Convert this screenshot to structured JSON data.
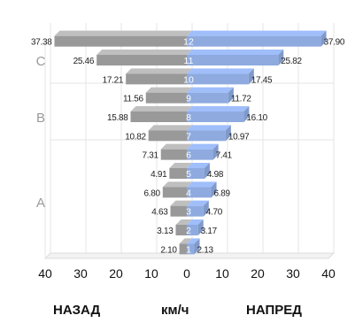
{
  "chart_data": {
    "type": "bar",
    "orientation": "horizontal-butterfly",
    "categories": [
      "12",
      "11",
      "10",
      "9",
      "8",
      "7",
      "6",
      "5",
      "4",
      "3",
      "2",
      "1"
    ],
    "series": [
      {
        "name": "НАЗАД",
        "color": "#999999",
        "values": [
          37.38,
          25.46,
          17.21,
          11.56,
          15.88,
          10.82,
          7.31,
          4.91,
          6.8,
          4.63,
          3.13,
          2.1
        ],
        "labels": [
          "37.38",
          "25.46",
          "17.21",
          "11.56",
          "15.88",
          "10.82",
          "7.31",
          "4.91",
          "6.80",
          "4.63",
          "3.13",
          "2.10"
        ]
      },
      {
        "name": "НАПРЕД",
        "color": "#8eaadf",
        "values": [
          37.9,
          25.82,
          17.45,
          11.72,
          16.1,
          10.97,
          7.41,
          4.98,
          6.89,
          4.7,
          3.17,
          2.13
        ],
        "labels": [
          "37.90",
          "25.82",
          "17.45",
          "11.72",
          "16.10",
          "10.97",
          "7.41",
          "4.98",
          "6.89",
          "4.70",
          "3.17",
          "2.13"
        ]
      }
    ],
    "xlim": [
      -40,
      40
    ],
    "x_ticks": [
      "40",
      "30",
      "20",
      "10",
      "0",
      "10",
      "20",
      "30",
      "40"
    ],
    "groups": [
      {
        "label": "C",
        "from": "12",
        "to": "10"
      },
      {
        "label": "B",
        "from": "9",
        "to": "7"
      },
      {
        "label": "A",
        "from": "6",
        "to": "1"
      }
    ],
    "footer": {
      "left": "НАЗАД",
      "center": "км/ч",
      "right": "НАПРЕД"
    }
  }
}
